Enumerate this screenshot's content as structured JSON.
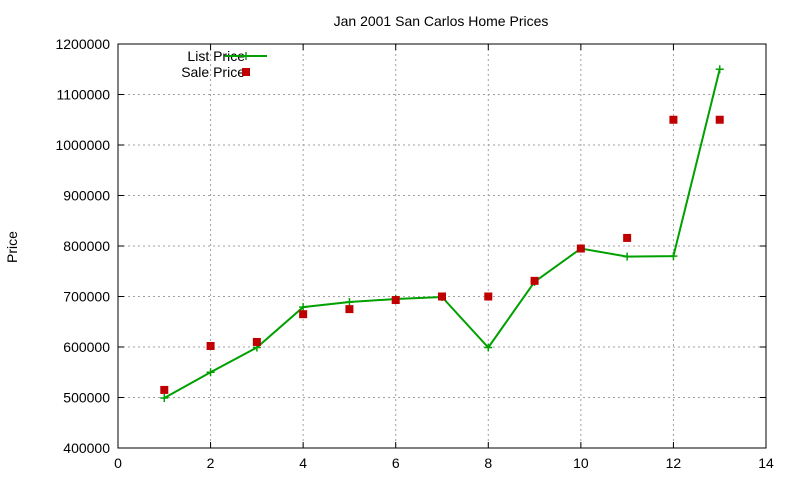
{
  "chart_data": {
    "type": "line",
    "title": "Jan 2001 San Carlos Home Prices",
    "xlabel": "",
    "ylabel": "Price",
    "xlim": [
      0,
      14
    ],
    "ylim": [
      400000,
      1200000
    ],
    "x_ticks": [
      "0",
      "2",
      "4",
      "6",
      "8",
      "10",
      "12",
      "14"
    ],
    "y_ticks": [
      "400000",
      "500000",
      "600000",
      "700000",
      "800000",
      "900000",
      "1000000",
      "1100000",
      "1200000"
    ],
    "grid": true,
    "legend_position": "top-left",
    "series": [
      {
        "name": "List Price",
        "style": "line+points",
        "marker": "plus",
        "color": "#00a000",
        "x": [
          1,
          2,
          3,
          4,
          5,
          6,
          7,
          8,
          9,
          10,
          11,
          12,
          13
        ],
        "y": [
          499000,
          550000,
          599000,
          679000,
          689000,
          695000,
          699000,
          599000,
          729000,
          795000,
          779000,
          780000,
          1150000
        ]
      },
      {
        "name": "Sale Price",
        "style": "points",
        "marker": "square",
        "color": "#c00000",
        "x": [
          1,
          2,
          3,
          4,
          5,
          6,
          7,
          8,
          9,
          10,
          11,
          12,
          13
        ],
        "y": [
          515000,
          602000,
          610000,
          665000,
          675000,
          693000,
          700000,
          700000,
          731000,
          795000,
          816000,
          1050000,
          1050000
        ]
      }
    ]
  }
}
